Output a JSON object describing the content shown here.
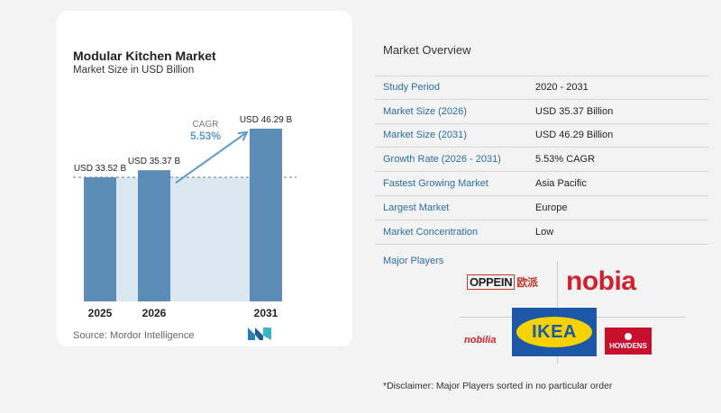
{
  "card": {
    "title": "Modular Kitchen Market",
    "subtitle": "Market Size in USD Billion",
    "source": "Source:  Mordor Intelligence",
    "logo": "mordor-intelligence-logo"
  },
  "chart_data": {
    "type": "bar",
    "categories": [
      "2025",
      "2026",
      "2031"
    ],
    "values": [
      33.52,
      35.37,
      46.29
    ],
    "data_labels": [
      "USD 33.52 B",
      "USD 35.37 B",
      "USD 46.29 B"
    ],
    "title": "Modular Kitchen Market",
    "subtitle": "Market Size in USD Billion",
    "annotation": {
      "label": "CAGR",
      "value": "5.53%"
    },
    "colors": {
      "bar": "#5b8db8",
      "bar_light": "#dbe7f0",
      "annotation": "#5b9bc8"
    }
  },
  "overview": {
    "title": "Market Overview",
    "rows": [
      {
        "label": "Study Period",
        "value": "2020 - 2031"
      },
      {
        "label": "Market Size (2026)",
        "value": "USD 35.37 Billion"
      },
      {
        "label": "Market Size (2031)",
        "value": "USD 46.29 Billion"
      },
      {
        "label": "Growth Rate (2026 - 2031)",
        "value": "5.53% CAGR"
      },
      {
        "label": "Fastest Growing Market",
        "value": "Asia Pacific"
      },
      {
        "label": "Largest Market",
        "value": "Europe"
      },
      {
        "label": "Market Concentration",
        "value": "Low"
      }
    ]
  },
  "players": {
    "title": "Major Players",
    "oppein": "OPPEIN",
    "oppein_cn": "欧派",
    "nobia": "nobia",
    "nobilia": "nobilia",
    "ikea": "IKEA",
    "howdens": "HOWDENS"
  },
  "disclaimer": "*Disclaimer: Major Players sorted in no particular order"
}
